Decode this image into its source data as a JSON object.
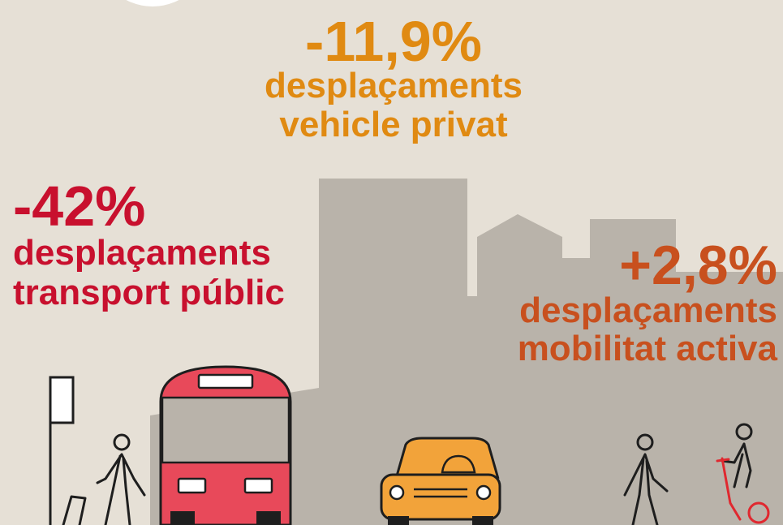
{
  "stats": [
    {
      "value": "-11,9%",
      "line1": "desplaçaments",
      "line2": "vehicle privat"
    },
    {
      "value": "-42%",
      "line1": "desplaçaments",
      "line2": "transport públic"
    },
    {
      "value": "+2,8%",
      "line1": "desplaçaments",
      "line2": "mobilitat activa"
    }
  ]
}
